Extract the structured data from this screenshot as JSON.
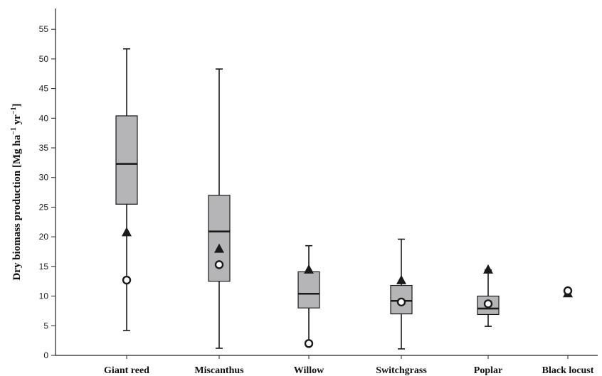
{
  "chart_data": {
    "type": "box",
    "ylabel": "Dry biomass production [Mg ha",
    "ylabel_sup1": "−1",
    "ylabel_mid": " yr",
    "ylabel_sup2": "−1",
    "ylabel_end": "]",
    "ylim": [
      0,
      58
    ],
    "yticks": [
      0,
      5,
      10,
      15,
      20,
      25,
      30,
      35,
      40,
      45,
      50,
      55
    ],
    "ytick_labels": [
      "0",
      "5",
      "10",
      "15",
      "20",
      "25",
      "30",
      "35",
      "40",
      "45",
      "50",
      "55"
    ],
    "categories": [
      "Giant reed",
      "Miscanthus",
      "Willow",
      "Switchgrass",
      "Poplar",
      "Black locust"
    ],
    "boxes": [
      {
        "min": 4.2,
        "q1": 25.5,
        "median": 32.3,
        "q3": 40.4,
        "max": 51.7,
        "triangle": 20.7,
        "circle": 12.7
      },
      {
        "min": 1.2,
        "q1": 12.5,
        "median": 20.9,
        "q3": 27.0,
        "max": 48.3,
        "triangle": 17.9,
        "circle": 15.3
      },
      {
        "min": 2.0,
        "q1": 8.0,
        "median": 10.4,
        "q3": 14.1,
        "max": 18.5,
        "triangle": 14.4,
        "circle": 2.0
      },
      {
        "min": 1.1,
        "q1": 7.0,
        "median": 9.2,
        "q3": 11.8,
        "max": 19.6,
        "triangle": 12.6,
        "circle": 9.0
      },
      {
        "min": 4.9,
        "q1": 6.9,
        "median": 7.9,
        "q3": 10.0,
        "max": 14.4,
        "triangle": 14.4,
        "circle": 8.7
      },
      {
        "min": null,
        "q1": null,
        "median": null,
        "q3": null,
        "max": null,
        "triangle": 10.4,
        "circle": 10.9
      }
    ],
    "colors": {
      "box_fill": "#b5b5b7",
      "stroke": "#1a1a1a",
      "axis": "#222222"
    },
    "grid": false,
    "legend": "none"
  }
}
